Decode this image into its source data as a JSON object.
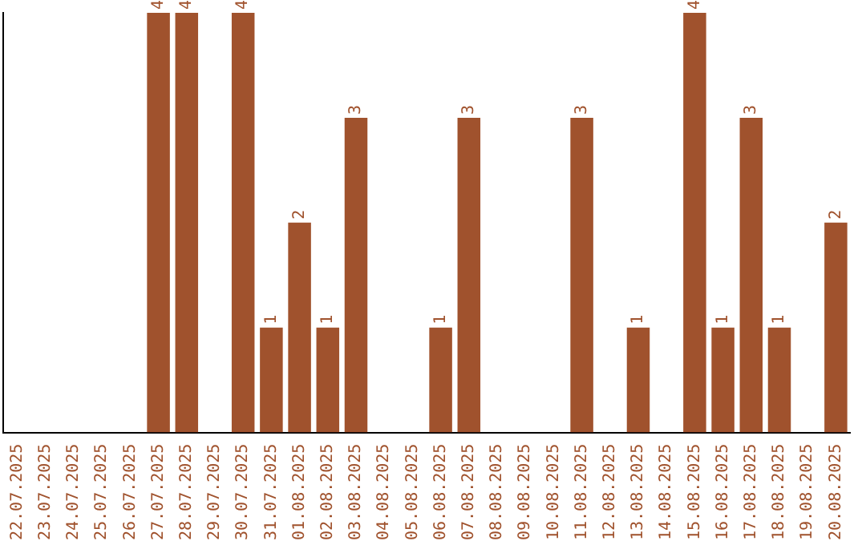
{
  "chart_data": {
    "type": "bar",
    "categories": [
      "22.07.2025",
      "23.07.2025",
      "24.07.2025",
      "25.07.2025",
      "26.07.2025",
      "27.07.2025",
      "28.07.2025",
      "29.07.2025",
      "30.07.2025",
      "31.07.2025",
      "01.08.2025",
      "02.08.2025",
      "03.08.2025",
      "04.08.2025",
      "05.08.2025",
      "06.08.2025",
      "07.08.2025",
      "08.08.2025",
      "09.08.2025",
      "10.08.2025",
      "11.08.2025",
      "12.08.2025",
      "13.08.2025",
      "14.08.2025",
      "15.08.2025",
      "16.08.2025",
      "17.08.2025",
      "18.08.2025",
      "19.08.2025",
      "20.08.2025"
    ],
    "values": [
      0,
      0,
      0,
      0,
      0,
      4,
      4,
      0,
      4,
      1,
      2,
      1,
      3,
      0,
      0,
      1,
      3,
      0,
      0,
      0,
      3,
      0,
      1,
      0,
      4,
      1,
      3,
      1,
      0,
      2
    ],
    "value_labels": [
      null,
      null,
      null,
      null,
      null,
      "4",
      "4",
      null,
      "4",
      "1",
      "2",
      "1",
      "3",
      null,
      null,
      "1",
      "3",
      null,
      null,
      null,
      "3",
      null,
      "1",
      null,
      "4",
      "1",
      "3",
      "1",
      null,
      "2"
    ],
    "color": "#a0522d",
    "grid": false,
    "legend": false
  }
}
